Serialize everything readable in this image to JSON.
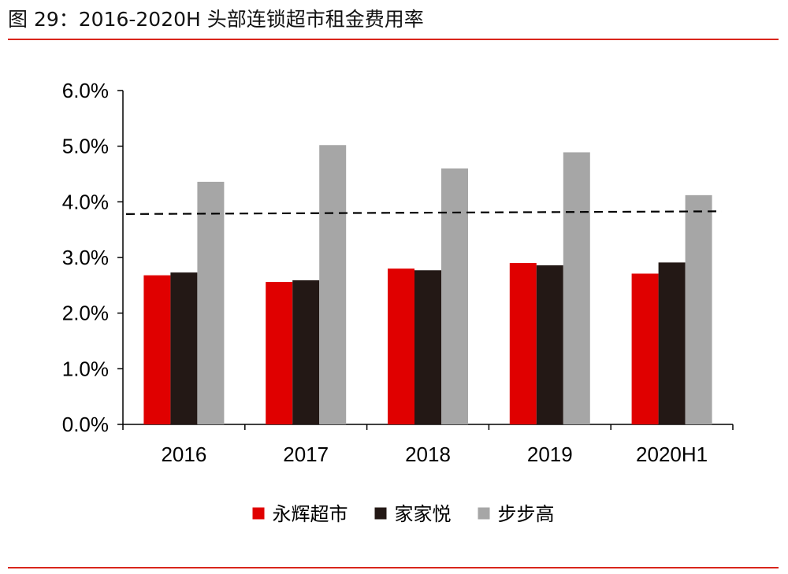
{
  "header": {
    "title": "图 29：2016-2020H 头部连锁超市租金费用率"
  },
  "colors": {
    "rule": "#d9261c",
    "axis": "#000000",
    "reference_line": "#000000"
  },
  "chart_data": {
    "type": "bar",
    "title": "",
    "xlabel": "",
    "ylabel": "",
    "categories": [
      "2016",
      "2017",
      "2018",
      "2019",
      "2020H1"
    ],
    "series": [
      {
        "name": "永辉超市",
        "color": "#e00000",
        "values": [
          2.68,
          2.56,
          2.8,
          2.9,
          2.71
        ]
      },
      {
        "name": "家家悦",
        "color": "#231815",
        "values": [
          2.73,
          2.59,
          2.77,
          2.86,
          2.91
        ]
      },
      {
        "name": "步步高",
        "color": "#a6a6a6",
        "values": [
          4.36,
          5.02,
          4.6,
          4.89,
          4.12
        ]
      }
    ],
    "ylim": [
      0,
      6
    ],
    "yticks": [
      "0.0%",
      "1.0%",
      "2.0%",
      "3.0%",
      "4.0%",
      "5.0%",
      "6.0%"
    ],
    "ytick_values": [
      0,
      1,
      2,
      3,
      4,
      5,
      6
    ],
    "reference_line": {
      "style": "dashed",
      "start": 3.78,
      "end": 3.83
    },
    "legend_position": "bottom",
    "grid": false
  }
}
